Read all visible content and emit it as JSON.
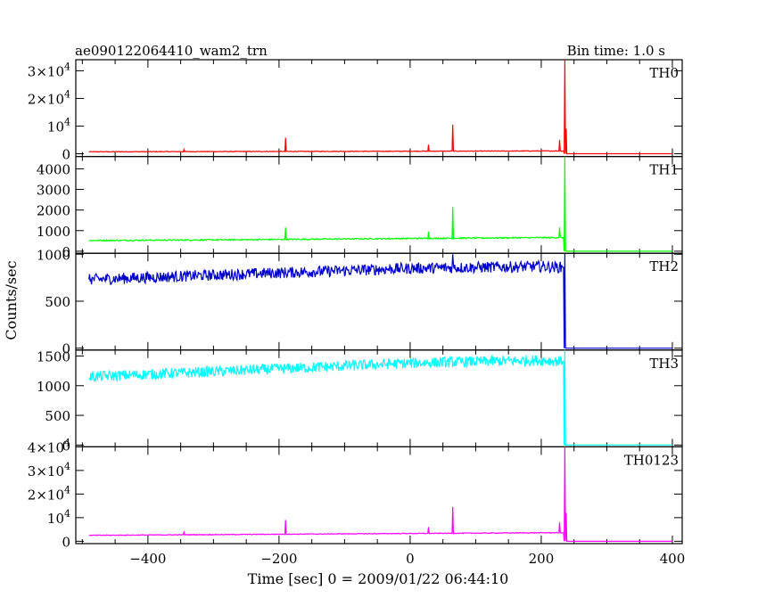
{
  "header": {
    "title": "ae090122064410_wam2_trn",
    "bin_time": "Bin time: 1.0 s"
  },
  "chart_data": {
    "type": "line",
    "xlabel": "Time [sec] 0 = 2009/01/22 06:44:10",
    "ylabel": "Counts/sec",
    "xlim": [
      -510,
      415
    ],
    "x_ticks": [
      -400,
      -200,
      0,
      200,
      400
    ],
    "x_tick_labels": [
      "−400",
      "−200",
      "0",
      "200",
      "400"
    ],
    "panels": [
      {
        "name": "TH0",
        "color": "#ff0000",
        "ylim": [
          -1000,
          34000
        ],
        "ticks": [
          0,
          10000,
          20000,
          30000
        ],
        "tick_labels": [
          {
            "base": "0",
            "exp": ""
          },
          {
            "base": "10",
            "exp": "4"
          },
          {
            "base": "2×10",
            "exp": "4"
          },
          {
            "base": "3×10",
            "exp": "4"
          }
        ],
        "baseline": [
          [
            -490,
            700
          ],
          [
            -250,
            800
          ],
          [
            0,
            900
          ],
          [
            200,
            1000
          ],
          [
            232,
            1000
          ]
        ],
        "noise": 120,
        "spikes": [
          [
            -345,
            1500
          ],
          [
            -190,
            5800
          ],
          [
            28,
            3300
          ],
          [
            65,
            10500
          ],
          [
            228,
            5000
          ],
          [
            236,
            34000
          ],
          [
            238,
            9000
          ]
        ],
        "post_level": 0
      },
      {
        "name": "TH1",
        "color": "#00ff00",
        "ylim": [
          -100,
          4600
        ],
        "ticks": [
          0,
          1000,
          2000,
          3000,
          4000
        ],
        "tick_labels": [
          {
            "base": "0",
            "exp": ""
          },
          {
            "base": "1000",
            "exp": ""
          },
          {
            "base": "2000",
            "exp": ""
          },
          {
            "base": "3000",
            "exp": ""
          },
          {
            "base": "4000",
            "exp": ""
          }
        ],
        "baseline": [
          [
            -490,
            520
          ],
          [
            -250,
            560
          ],
          [
            0,
            620
          ],
          [
            200,
            660
          ],
          [
            232,
            660
          ]
        ],
        "noise": 30,
        "spikes": [
          [
            -190,
            1150
          ],
          [
            28,
            950
          ],
          [
            65,
            2150
          ],
          [
            228,
            1150
          ],
          [
            236,
            4600
          ]
        ],
        "post_level": 0
      },
      {
        "name": "TH2",
        "color": "#0000cc",
        "ylim": [
          -20,
          1010
        ],
        "ticks": [
          0,
          500,
          1000
        ],
        "tick_labels": [
          {
            "base": "0",
            "exp": ""
          },
          {
            "base": "500",
            "exp": ""
          },
          {
            "base": "1000",
            "exp": ""
          }
        ],
        "baseline": [
          [
            -490,
            730
          ],
          [
            -250,
            790
          ],
          [
            0,
            850
          ],
          [
            200,
            870
          ],
          [
            232,
            860
          ]
        ],
        "noise": 60,
        "spikes": [
          [
            65,
            1000
          ],
          [
            236,
            1010
          ]
        ],
        "post_level": 0
      },
      {
        "name": "TH3",
        "color": "#00ffff",
        "ylim": [
          -30,
          1600
        ],
        "ticks": [
          0,
          500,
          1000,
          1500
        ],
        "tick_labels": [
          {
            "base": "0",
            "exp": ""
          },
          {
            "base": "500",
            "exp": ""
          },
          {
            "base": "1000",
            "exp": ""
          },
          {
            "base": "1500",
            "exp": ""
          }
        ],
        "baseline": [
          [
            -490,
            1150
          ],
          [
            -250,
            1260
          ],
          [
            0,
            1380
          ],
          [
            200,
            1430
          ],
          [
            232,
            1410
          ]
        ],
        "noise": 90,
        "spikes": [
          [
            236,
            1600
          ]
        ],
        "post_level": 0
      },
      {
        "name": "TH0123",
        "color": "#ff00ff",
        "ylim": [
          -1000,
          40000
        ],
        "ticks": [
          0,
          10000,
          20000,
          30000,
          40000
        ],
        "tick_labels": [
          {
            "base": "0",
            "exp": ""
          },
          {
            "base": "10",
            "exp": "4"
          },
          {
            "base": "2×10",
            "exp": "4"
          },
          {
            "base": "3×10",
            "exp": "4"
          },
          {
            "base": "4×10",
            "exp": "4"
          }
        ],
        "baseline": [
          [
            -490,
            2500
          ],
          [
            -250,
            2900
          ],
          [
            0,
            3300
          ],
          [
            200,
            3600
          ],
          [
            232,
            3600
          ]
        ],
        "noise": 150,
        "spikes": [
          [
            -345,
            3800
          ],
          [
            -190,
            9000
          ],
          [
            28,
            6000
          ],
          [
            65,
            14500
          ],
          [
            228,
            8000
          ],
          [
            236,
            40000
          ],
          [
            238,
            12000
          ]
        ],
        "post_level": 0
      }
    ]
  }
}
